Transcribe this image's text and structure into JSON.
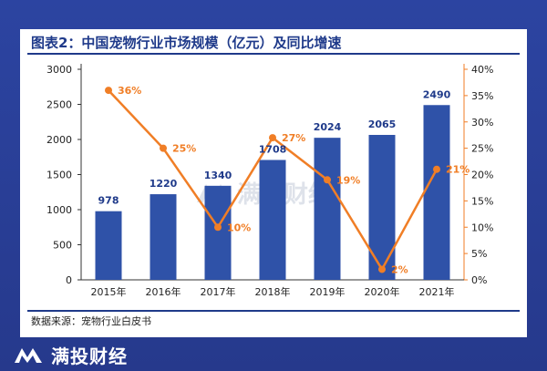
{
  "title": "图表2：中国宠物行业市场规模（亿元）及同比增速",
  "source": "数据来源：宠物行业白皮书",
  "brand": "满投财经",
  "watermark": "满投财经",
  "colors": {
    "bar": "#2f52a8",
    "line": "#f07e26",
    "bar_label": "#1f3a8a",
    "line_label": "#f07e26",
    "frame": "#2a3f97"
  },
  "chart_data": {
    "type": "bar+line",
    "categories": [
      "2015年",
      "2016年",
      "2017年",
      "2018年",
      "2019年",
      "2020年",
      "2021年"
    ],
    "series": [
      {
        "type": "bar",
        "axis": "left",
        "values": [
          978,
          1220,
          1340,
          1708,
          2024,
          2065,
          2490
        ]
      },
      {
        "type": "line",
        "axis": "right",
        "values": [
          36,
          25,
          10,
          27,
          19,
          2,
          21
        ]
      }
    ],
    "bar_labels": [
      "978",
      "1220",
      "1340",
      "1708",
      "2024",
      "2065",
      "2490"
    ],
    "line_labels": [
      "36%",
      "25%",
      "10%",
      "27%",
      "19%",
      "2%",
      "21%"
    ],
    "ylim_left": [
      0,
      3000
    ],
    "yticks_left": [
      "0",
      "500",
      "1000",
      "1500",
      "2000",
      "2500",
      "3000"
    ],
    "ylim_right": [
      0,
      40
    ],
    "yticks_right": [
      "0%",
      "5%",
      "10%",
      "15%",
      "20%",
      "25%",
      "30%",
      "35%",
      "40%"
    ],
    "grid": false,
    "legend": "none"
  }
}
